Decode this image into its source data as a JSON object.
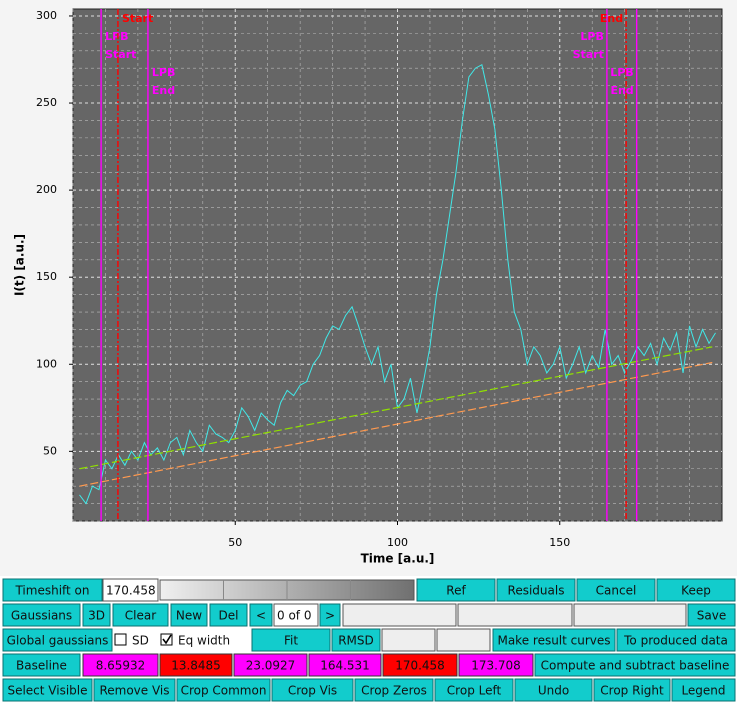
{
  "chart_data": {
    "type": "line",
    "xlabel": "Time [a.u.]",
    "ylabel": "I(t) [a.u.]",
    "xlim": [
      0,
      200
    ],
    "ylim": [
      10,
      304
    ],
    "xticks": [
      50,
      100,
      150
    ],
    "yticks": [
      50,
      100,
      150,
      200,
      250,
      300
    ],
    "grid": true,
    "series": [
      {
        "color": "#40e8e8",
        "dash": false,
        "x": [
          2,
          4,
          6,
          8,
          10,
          12,
          14,
          16,
          18,
          20,
          22,
          24,
          26,
          28,
          30,
          32,
          34,
          36,
          38,
          40,
          42,
          44,
          46,
          48,
          50,
          52,
          54,
          56,
          58,
          60,
          62,
          64,
          66,
          68,
          70,
          72,
          74,
          76,
          78,
          80,
          82,
          84,
          86,
          88,
          90,
          92,
          94,
          96,
          98,
          100,
          102,
          104,
          106,
          108,
          110,
          112,
          114,
          116,
          118,
          120,
          122,
          124,
          126,
          128,
          130,
          132,
          134,
          136,
          138,
          140,
          142,
          144,
          146,
          148,
          150,
          152,
          154,
          156,
          158,
          160,
          162,
          164,
          166,
          168,
          170,
          172,
          174,
          176,
          178,
          180,
          182,
          184,
          186,
          188,
          190,
          192,
          194,
          196,
          198
        ],
        "values": [
          25,
          20,
          30,
          28,
          45,
          40,
          48,
          42,
          50,
          45,
          55,
          48,
          52,
          45,
          55,
          58,
          48,
          62,
          55,
          50,
          65,
          60,
          58,
          55,
          62,
          75,
          70,
          62,
          72,
          68,
          65,
          78,
          85,
          82,
          88,
          90,
          100,
          105,
          115,
          122,
          120,
          128,
          133,
          122,
          110,
          100,
          110,
          90,
          100,
          75,
          80,
          92,
          72,
          90,
          110,
          140,
          160,
          185,
          210,
          240,
          265,
          270,
          272,
          255,
          235,
          200,
          160,
          130,
          120,
          100,
          110,
          105,
          95,
          100,
          110,
          92,
          100,
          110,
          95,
          105,
          98,
          120,
          100,
          105,
          95,
          102,
          110,
          105,
          112,
          100,
          115,
          108,
          118,
          95,
          122,
          110,
          120,
          112,
          118
        ]
      },
      {
        "color": "#90e000",
        "dash": true,
        "x": [
          2,
          197
        ],
        "values": [
          40,
          110
        ]
      },
      {
        "color": "#ff9a50",
        "dash": true,
        "x": [
          2,
          197
        ],
        "values": [
          30,
          101
        ]
      }
    ],
    "markers": [
      {
        "x": 8.65932,
        "color": "#ff00ff",
        "label": [
          "LPB",
          "Start"
        ]
      },
      {
        "x": 13.8485,
        "color": "#ff0000",
        "label": [
          "Start"
        ]
      },
      {
        "x": 23.0927,
        "color": "#ff00ff",
        "label": [
          "LPB",
          "End"
        ]
      },
      {
        "x": 164.531,
        "color": "#ff00ff",
        "label": [
          "LPB",
          "Start"
        ]
      },
      {
        "x": 170.458,
        "color": "#ff0000",
        "label": [
          "End"
        ]
      },
      {
        "x": 173.708,
        "color": "#ff00ff",
        "label": [
          "LPB",
          "End"
        ]
      }
    ]
  },
  "toolbar": {
    "rows": [
      [
        "Timeshift on",
        "Ref",
        "Residuals",
        "Cancel",
        "Keep"
      ],
      [
        "Gaussians",
        "3D",
        "Clear",
        "New",
        "Del",
        "<",
        "0 of 0",
        ">",
        "Save"
      ],
      [
        "Global gaussians",
        "Fit",
        "RMSD",
        "Make result curves",
        "To produced data"
      ],
      [
        "Baseline",
        "Compute and subtract baseline"
      ],
      [
        "Select Visible",
        "Remove Vis",
        "Crop Common",
        "Crop Vis",
        "Crop Zeros",
        "Crop Left",
        "Undo",
        "Crop Right",
        "Legend"
      ]
    ],
    "checkboxes": [
      {
        "label": "SD",
        "checked": false
      },
      {
        "label": "Eq width",
        "checked": true
      }
    ]
  }
}
